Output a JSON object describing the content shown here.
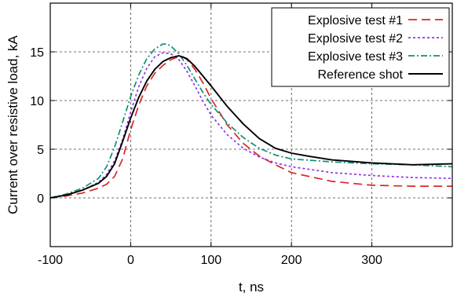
{
  "chart_data": {
    "type": "line",
    "xlabel": "t, ns",
    "ylabel": "Current over resistive load, kA",
    "xlim": [
      -100,
      400
    ],
    "ylim": [
      -5,
      20
    ],
    "x_ticks": [
      -100,
      0,
      100,
      200,
      300
    ],
    "y_ticks": [
      0,
      5,
      10,
      15
    ],
    "grid": true,
    "legend_position": "top-right",
    "series": [
      {
        "name": "Explosive test #1",
        "color": "#dc2626",
        "dash": "11,6",
        "x": [
          -100,
          -80,
          -60,
          -40,
          -30,
          -20,
          -10,
          0,
          10,
          20,
          30,
          40,
          50,
          60,
          65,
          70,
          80,
          90,
          100,
          120,
          140,
          160,
          180,
          200,
          250,
          300,
          350,
          400
        ],
        "y": [
          0.0,
          0.2,
          0.5,
          1.0,
          1.4,
          2.2,
          4.0,
          7.0,
          9.5,
          11.5,
          12.8,
          13.6,
          14.2,
          14.5,
          14.5,
          14.2,
          13.2,
          11.8,
          10.2,
          7.5,
          5.6,
          4.3,
          3.4,
          2.6,
          1.7,
          1.3,
          1.2,
          1.2
        ]
      },
      {
        "name": "Explosive test #2",
        "color": "#9333ea",
        "dash": "3,3",
        "x": [
          -100,
          -80,
          -60,
          -40,
          -30,
          -20,
          -10,
          0,
          10,
          20,
          30,
          40,
          50,
          60,
          70,
          80,
          90,
          100,
          120,
          140,
          160,
          180,
          200,
          250,
          300,
          350,
          400
        ],
        "y": [
          0.0,
          0.3,
          0.8,
          1.6,
          2.4,
          3.8,
          6.0,
          8.8,
          11.4,
          13.3,
          14.5,
          14.9,
          14.8,
          14.2,
          13.0,
          11.5,
          9.9,
          8.5,
          6.5,
          5.1,
          4.2,
          3.6,
          3.2,
          2.6,
          2.3,
          2.1,
          2.0
        ]
      },
      {
        "name": "Explosive test #3",
        "color": "#0f8f7a",
        "dash": "8,3,2,3",
        "x": [
          -100,
          -80,
          -60,
          -40,
          -30,
          -20,
          -10,
          0,
          10,
          20,
          30,
          40,
          45,
          50,
          60,
          70,
          80,
          90,
          100,
          120,
          140,
          160,
          180,
          200,
          250,
          300,
          350,
          400
        ],
        "y": [
          0.0,
          0.4,
          1.0,
          2.0,
          3.2,
          5.2,
          7.8,
          10.4,
          12.6,
          14.3,
          15.3,
          15.8,
          15.8,
          15.6,
          14.8,
          13.6,
          12.2,
          10.8,
          9.6,
          7.7,
          6.2,
          5.1,
          4.4,
          4.0,
          3.7,
          3.5,
          3.4,
          3.2
        ]
      },
      {
        "name": "Reference shot",
        "color": "#000000",
        "dash": "",
        "x": [
          -100,
          -80,
          -60,
          -40,
          -30,
          -20,
          -10,
          0,
          10,
          20,
          30,
          40,
          50,
          60,
          70,
          80,
          90,
          100,
          120,
          140,
          160,
          180,
          200,
          220,
          250,
          300,
          350,
          400
        ],
        "y": [
          0.0,
          0.3,
          0.8,
          1.5,
          2.2,
          3.5,
          5.8,
          8.2,
          10.3,
          12.0,
          13.2,
          14.0,
          14.4,
          14.6,
          14.3,
          13.5,
          12.5,
          11.5,
          9.4,
          7.6,
          6.1,
          5.1,
          4.6,
          4.3,
          3.9,
          3.6,
          3.4,
          3.5
        ]
      }
    ]
  }
}
